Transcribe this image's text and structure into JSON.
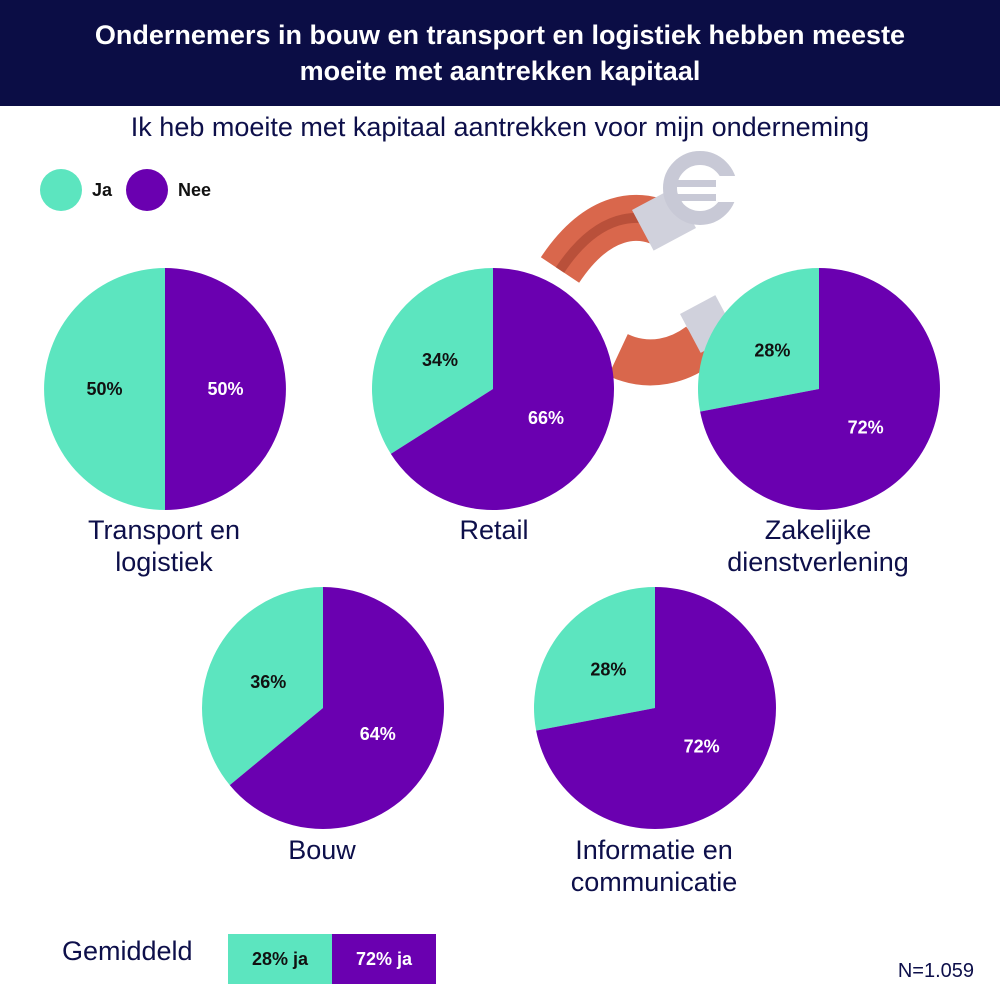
{
  "chart_data": {
    "type": "pie",
    "title": "Ondernemers in bouw en transport en logistiek hebben meeste moeite met aantrekken kapitaal",
    "subtitle": "Ik heb moeite met kapitaal aantrekken voor mijn onderneming",
    "legend": [
      {
        "name": "Ja",
        "color": "#5ce5bf"
      },
      {
        "name": "Nee",
        "color": "#6a00b0"
      }
    ],
    "legend_placement": "top-left",
    "pies": [
      {
        "category": "Transport en\nlogistiek",
        "values": [
          50,
          50
        ],
        "labels": [
          "50%",
          "50%"
        ]
      },
      {
        "category": "Retail",
        "values": [
          34,
          66
        ],
        "labels": [
          "34%",
          "66%"
        ]
      },
      {
        "category": "Zakelijke\ndienstverlening",
        "values": [
          28,
          72
        ],
        "labels": [
          "28%",
          "72%"
        ]
      },
      {
        "category": "Bouw",
        "values": [
          36,
          64
        ],
        "labels": [
          "36%",
          "64%"
        ]
      },
      {
        "category": "Informatie en\ncommunicatie",
        "values": [
          28,
          72
        ],
        "labels": [
          "28%",
          "72%"
        ]
      }
    ],
    "average": {
      "label": "Gemiddeld",
      "ja": "28% ja",
      "nee": "72% ja"
    },
    "note": "N=1.059"
  },
  "decoration": {
    "icon": "magnet-euro-icon",
    "magnet_color": "#d9674c",
    "euro_color": "#c8c9d6"
  }
}
